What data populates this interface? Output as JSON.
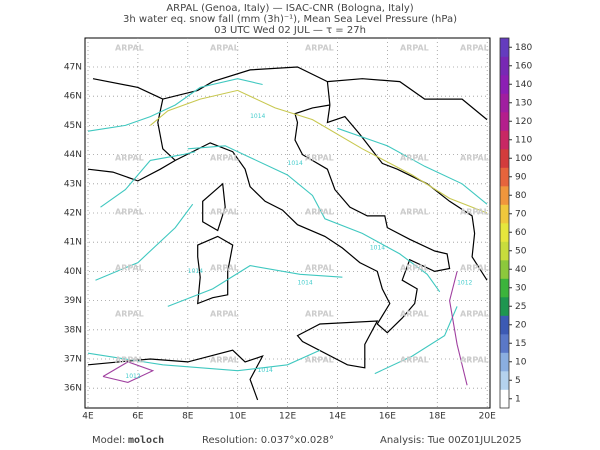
{
  "header": {
    "line1": "ARPAL (Genoa, Italy)  —  ISAC-CNR (Bologna, Italy)",
    "line2": "3h water eq. snow fall (mm (3h)⁻¹), Mean Sea Level Pressure (hPa)",
    "line3": "03 UTC Wed 02 JUL  —  τ = 27h"
  },
  "map": {
    "lat_labels": [
      "47N",
      "46N",
      "45N",
      "44N",
      "43N",
      "42N",
      "41N",
      "40N",
      "39N",
      "38N",
      "37N",
      "36N"
    ],
    "lon_labels": [
      "4E",
      "6E",
      "8E",
      "10E",
      "12E",
      "14E",
      "16E",
      "18E",
      "20E"
    ],
    "watermark": "ARPAL",
    "contour_labels": [
      "1014",
      "1012"
    ]
  },
  "colorbar": {
    "labels": [
      1,
      5,
      10,
      15,
      20,
      25,
      30,
      40,
      50,
      60,
      70,
      80,
      90,
      100,
      110,
      120,
      130,
      140,
      160,
      180
    ],
    "colors": [
      "#ffffff",
      "#b4d2ee",
      "#8aaee0",
      "#5a78c8",
      "#3c5ab4",
      "#1e9650",
      "#3cb43c",
      "#8cc83c",
      "#c8dc3c",
      "#e6e63c",
      "#f0c83c",
      "#f0963c",
      "#e6643c",
      "#d23c3c",
      "#c82864",
      "#b41e8c",
      "#a01ea0",
      "#8c1eb4",
      "#7828b4",
      "#643cbe"
    ]
  },
  "footer": {
    "model_label": "Model:",
    "model": "moloch",
    "resolution": "Resolution: 0.037°x0.028°",
    "analysis": "Analysis: Tue 00Z01JUL2025"
  }
}
